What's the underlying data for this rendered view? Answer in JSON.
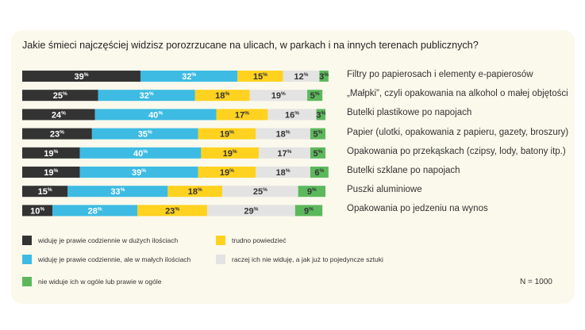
{
  "chart_data": {
    "type": "bar",
    "orientation": "horizontal",
    "stacked": true,
    "title": "Jakie śmieci najczęściej widzisz porozrzucane na ulicach, w parkach i na innych terenach publicznych?",
    "categories": [
      "Filtry po papierosach i elementy e-papierosów",
      "„Małpki”, czyli opakowania na alkohol o małej objętości",
      "Butelki plastikowe po napojach",
      "Papier (ulotki, opakowania z papieru, gazety, broszury)",
      "Opakowania po przekąskach (czipsy, lody, batony itp.)",
      "Butelki szklane po napojach",
      "Puszki aluminiowe",
      "Opakowania po jedzeniu na wynos"
    ],
    "series": [
      {
        "name": "widuję je prawie codziennie w dużych ilościach",
        "color": "#333333",
        "text_color": "#ffffff",
        "values": [
          39,
          25,
          24,
          23,
          19,
          19,
          15,
          10
        ]
      },
      {
        "name": "widuję je prawie codziennie, ale w małych ilościach",
        "color": "#3dbbe3",
        "text_color": "#ffffff",
        "values": [
          32,
          32,
          40,
          35,
          40,
          39,
          33,
          28
        ]
      },
      {
        "name": "trudno powiedzieć",
        "color": "#ffd21f",
        "text_color": "#333333",
        "values": [
          15,
          18,
          17,
          19,
          19,
          19,
          18,
          23
        ]
      },
      {
        "name": "raczej ich nie widuję, a jak już to pojedyncze sztuki",
        "color": "#e3e3e3",
        "text_color": "#333333",
        "values": [
          12,
          19,
          16,
          18,
          17,
          18,
          25,
          29
        ]
      },
      {
        "name": "nie widuje ich w ogóle lub prawie w ogóle",
        "color": "#5cb85c",
        "text_color": "#333333",
        "values": [
          3,
          5,
          3,
          5,
          5,
          6,
          9,
          9
        ]
      }
    ],
    "value_suffix": "%",
    "xlim": [
      0,
      100
    ],
    "legend_position": "bottom",
    "note": "N = 1000"
  }
}
